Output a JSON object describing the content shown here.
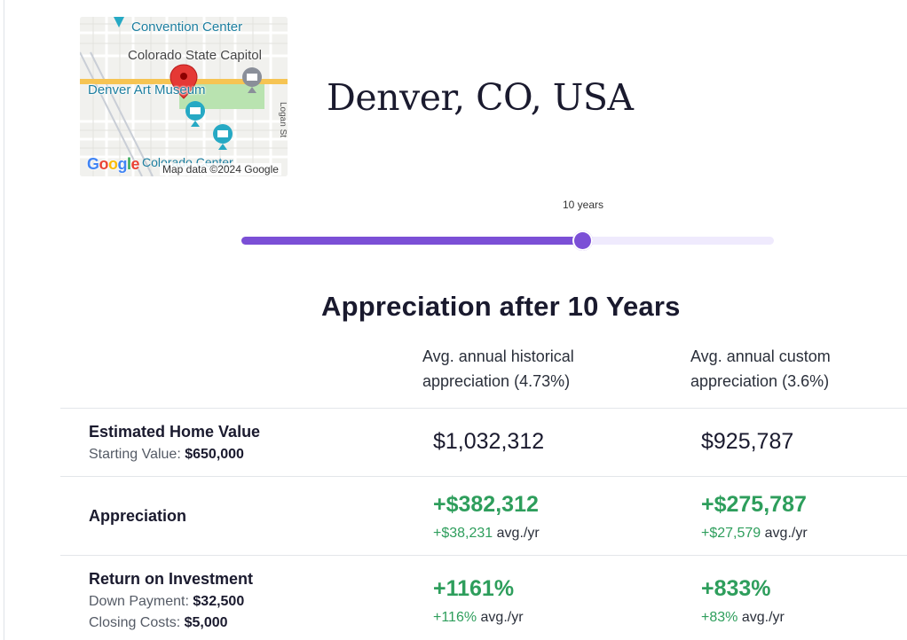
{
  "map": {
    "labels": {
      "convention_center": "Convention Center",
      "state_capitol": "Colorado State Capitol",
      "art_museum": "Denver Art Museum",
      "logan_st": "Logan St",
      "center_partial": "Colorado Center",
      "google_logo": "Google",
      "attribution": "Map data ©2024 Google"
    },
    "colors": {
      "pin": "#e53935",
      "poi_teal": "#26a9c4",
      "poi_gray": "#8a8f99",
      "highway": "#f6c453",
      "park": "#b9e3b0"
    }
  },
  "location": {
    "title": "Denver, CO, USA"
  },
  "slider": {
    "value_label": "10 years",
    "fraction": 0.64,
    "colors": {
      "fill": "#7b4fd6",
      "track": "#efeafd"
    }
  },
  "appreciation": {
    "title": "Appreciation after 10 Years",
    "columns": [
      {
        "line1": "Avg. annual historical",
        "line2": "appreciation (4.73%)"
      },
      {
        "line1": "Avg. annual custom",
        "line2": "appreciation (3.6%)"
      }
    ],
    "rows": {
      "home_value": {
        "label": "Estimated Home Value",
        "sub_label": "Starting Value:",
        "sub_value": "$650,000",
        "values": [
          "$1,032,312",
          "$925,787"
        ]
      },
      "appreciation": {
        "label": "Appreciation",
        "values": [
          "+$382,312",
          "+$275,787"
        ],
        "per_year": [
          "+$38,231",
          "+$27,579"
        ],
        "per_year_unit": "avg./yr"
      },
      "roi": {
        "label": "Return on Investment",
        "down_payment_label": "Down Payment:",
        "down_payment_value": "$32,500",
        "closing_costs_label": "Closing Costs:",
        "closing_costs_value": "$5,000",
        "values": [
          "+1161%",
          "+833%"
        ],
        "per_year": [
          "+116%",
          "+83%"
        ],
        "per_year_unit": "avg./yr"
      }
    },
    "colors": {
      "positive": "#2e9e5c"
    }
  }
}
